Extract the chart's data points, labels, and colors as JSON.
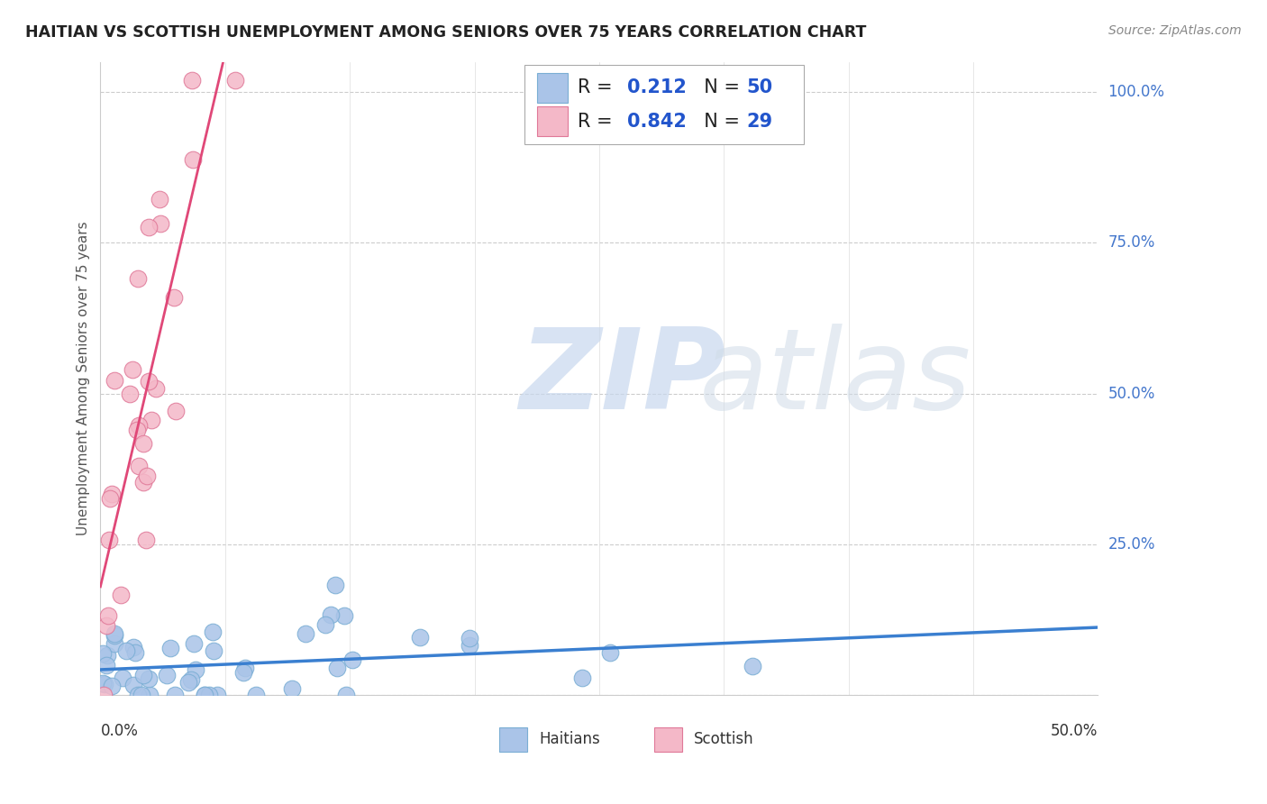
{
  "title": "HAITIAN VS SCOTTISH UNEMPLOYMENT AMONG SENIORS OVER 75 YEARS CORRELATION CHART",
  "source": "Source: ZipAtlas.com",
  "ylabel": "Unemployment Among Seniors over 75 years",
  "watermark_zip": "ZIP",
  "watermark_atlas": "atlas",
  "xlim": [
    0.0,
    0.5
  ],
  "ylim": [
    0.0,
    1.05
  ],
  "ytick_vals": [
    0.0,
    0.25,
    0.5,
    0.75,
    1.0
  ],
  "ytick_labels": [
    "",
    "25.0%",
    "50.0%",
    "75.0%",
    "100.0%"
  ],
  "haitian_color": "#aac4e8",
  "haitian_edge": "#7aaed4",
  "scottish_color": "#f4b8c8",
  "scottish_edge": "#e07898",
  "line_haitian_color": "#3a7fd0",
  "line_scottish_color": "#e04878",
  "legend_R_color": "#333333",
  "legend_val_color": "#2255cc",
  "ytick_color": "#4477cc",
  "haitian_R": 0.212,
  "haitian_N": 50,
  "scottish_R": 0.842,
  "scottish_N": 29,
  "seed": 99
}
